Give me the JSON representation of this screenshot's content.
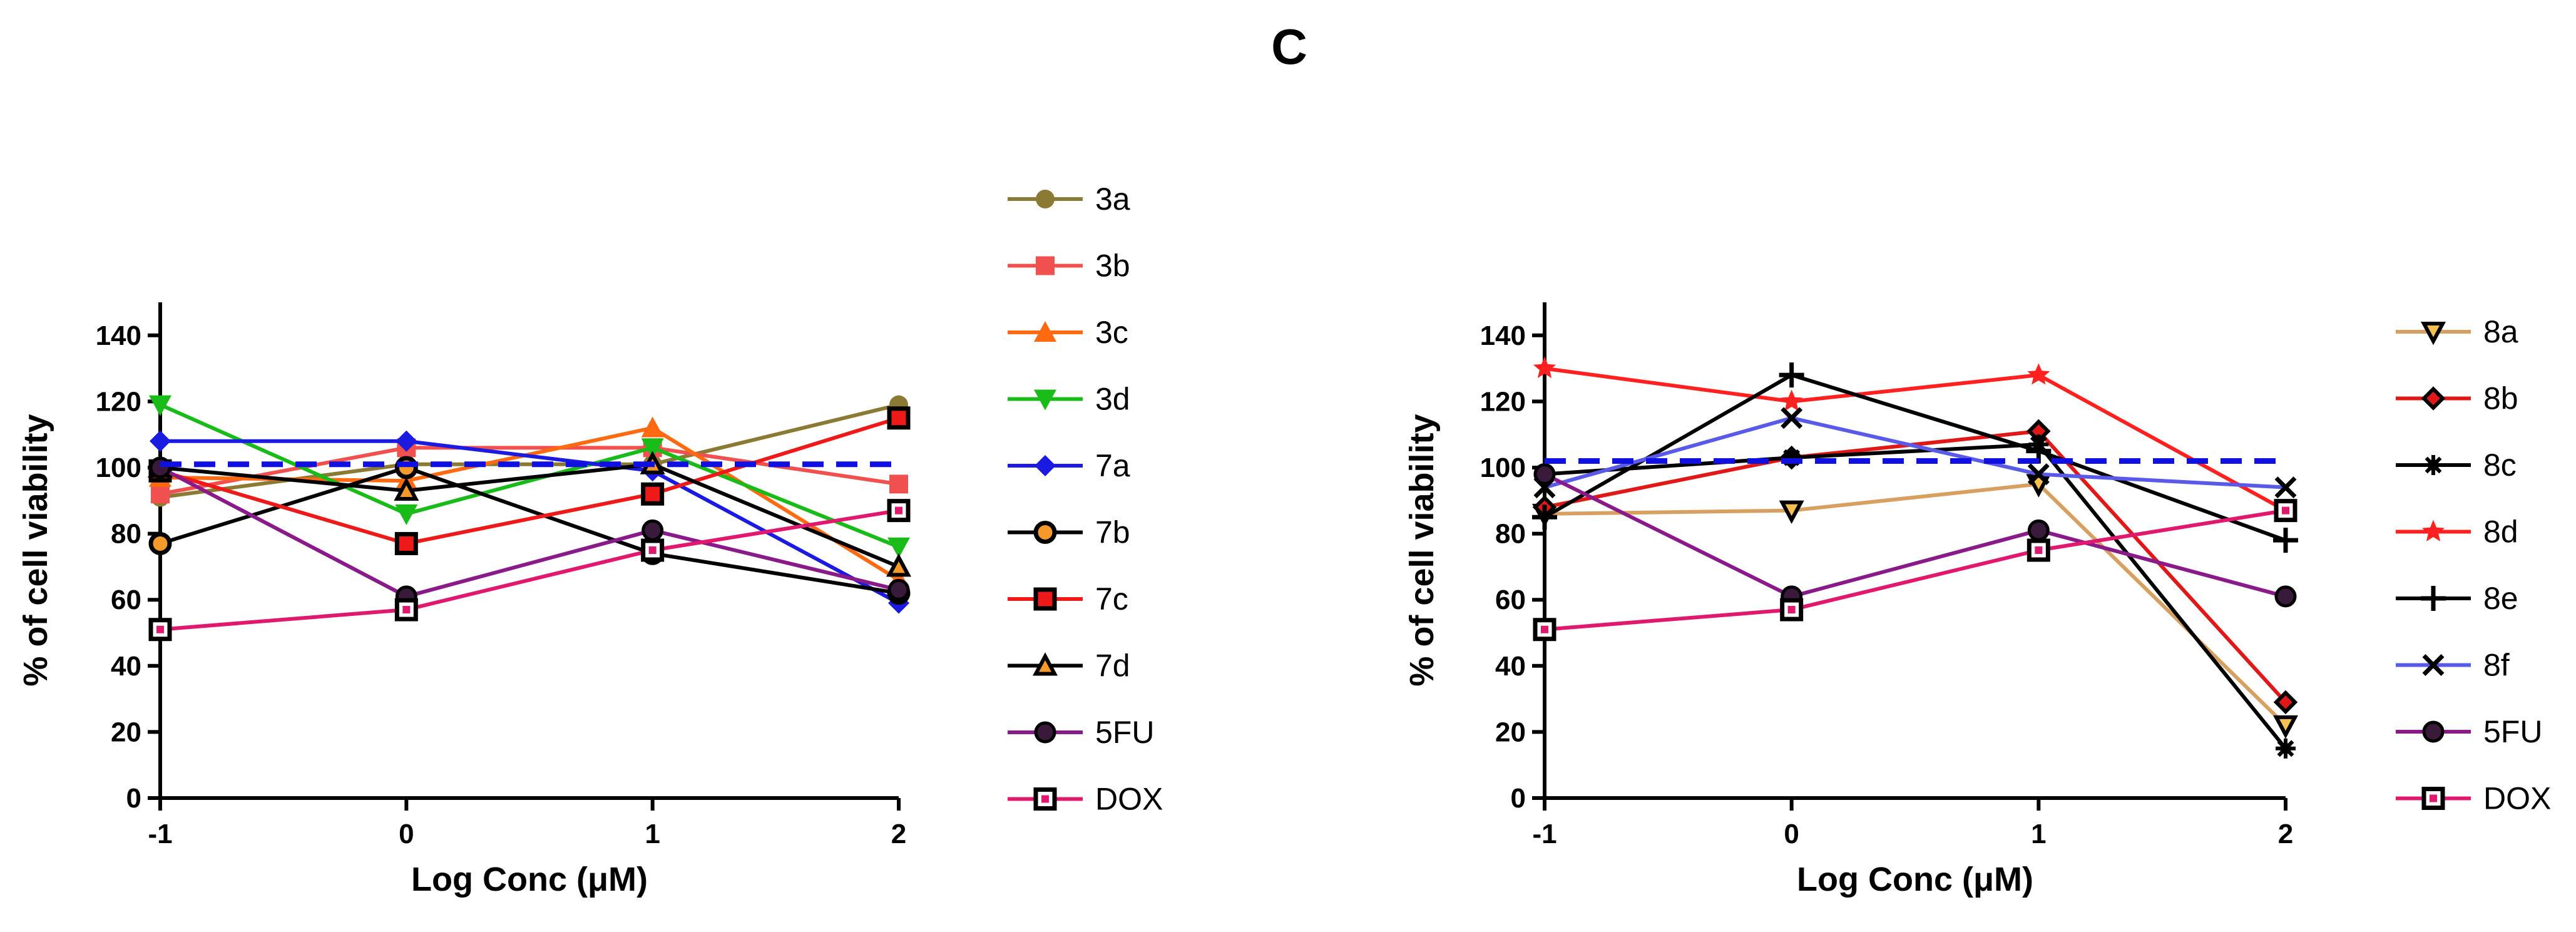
{
  "figure": {
    "title": "C"
  },
  "chart_data": [
    {
      "type": "line",
      "x": [
        -1,
        0,
        1,
        2
      ],
      "xlabel": "Log Conc  (μM)",
      "ylabel": "% of cell viability",
      "xlim": [
        -1,
        2
      ],
      "ylim": [
        0,
        150
      ],
      "xticks": [
        "-1",
        "0",
        "1",
        "2"
      ],
      "yticks": [
        "0",
        "20",
        "40",
        "60",
        "80",
        "100",
        "120",
        "140"
      ],
      "reference_line": {
        "y": 101,
        "color": "#1010e0",
        "style": "dashed"
      },
      "legend_position": "right",
      "series": [
        {
          "name": "3a",
          "values": [
            91,
            101,
            101,
            119
          ],
          "color": "#8b7a33",
          "marker": "circle"
        },
        {
          "name": "3b",
          "values": [
            92,
            106,
            106,
            95
          ],
          "color": "#f0504e",
          "marker": "square"
        },
        {
          "name": "3c",
          "values": [
            97,
            96,
            112,
            66
          ],
          "color": "#ff6a10",
          "marker": "triangle-up"
        },
        {
          "name": "3d",
          "values": [
            119,
            86,
            106,
            76
          ],
          "color": "#18bb18",
          "marker": "triangle-down"
        },
        {
          "name": "7a",
          "values": [
            108,
            108,
            99,
            59
          ],
          "color": "#1a1ae0",
          "marker": "diamond"
        },
        {
          "name": "7b",
          "values": [
            77,
            100,
            74,
            62
          ],
          "color": "#000000",
          "marker": "circle-open"
        },
        {
          "name": "7c",
          "values": [
            99,
            77,
            92,
            115
          ],
          "color": "#ee1a1a",
          "marker": "square-open"
        },
        {
          "name": "7d",
          "values": [
            100,
            93,
            101,
            70
          ],
          "color": "#000000",
          "marker": "triangle-open"
        },
        {
          "name": "5FU",
          "values": [
            100,
            61,
            81,
            63
          ],
          "color": "#8a1a8a",
          "marker": "circle-dark"
        },
        {
          "name": "DOX",
          "values": [
            51,
            57,
            75,
            87
          ],
          "color": "#e0186e",
          "marker": "square-dot"
        }
      ]
    },
    {
      "type": "line",
      "x": [
        -1,
        0,
        1,
        2
      ],
      "xlabel": "Log Conc  (μM)",
      "ylabel": "% of cell viability",
      "xlim": [
        -1,
        2
      ],
      "ylim": [
        0,
        150
      ],
      "xticks": [
        "-1",
        "0",
        "1",
        "2"
      ],
      "yticks": [
        "0",
        "20",
        "40",
        "60",
        "80",
        "100",
        "120",
        "140"
      ],
      "reference_line": {
        "y": 102,
        "color": "#1010e0",
        "style": "dashed"
      },
      "legend_position": "right",
      "series": [
        {
          "name": "8a",
          "values": [
            86,
            87,
            95,
            22
          ],
          "color": "#d8a060",
          "marker": "triangle-down-open"
        },
        {
          "name": "8b",
          "values": [
            88,
            103,
            111,
            29
          ],
          "color": "#e01818",
          "marker": "diamond-dark"
        },
        {
          "name": "8c",
          "values": [
            98,
            103,
            107,
            15
          ],
          "color": "#000000",
          "marker": "star-dark"
        },
        {
          "name": "8d",
          "values": [
            130,
            120,
            128,
            87
          ],
          "color": "#ff2020",
          "marker": "star"
        },
        {
          "name": "8e",
          "values": [
            85,
            128,
            105,
            78
          ],
          "color": "#000000",
          "marker": "plus"
        },
        {
          "name": "8f",
          "values": [
            94,
            115,
            98,
            94
          ],
          "color": "#5a5ae8",
          "marker": "x"
        },
        {
          "name": "5FU",
          "values": [
            98,
            61,
            81,
            61
          ],
          "color": "#8a1a8a",
          "marker": "circle-dark"
        },
        {
          "name": "DOX",
          "values": [
            51,
            57,
            75,
            87
          ],
          "color": "#e0186e",
          "marker": "square-dot"
        }
      ]
    }
  ]
}
